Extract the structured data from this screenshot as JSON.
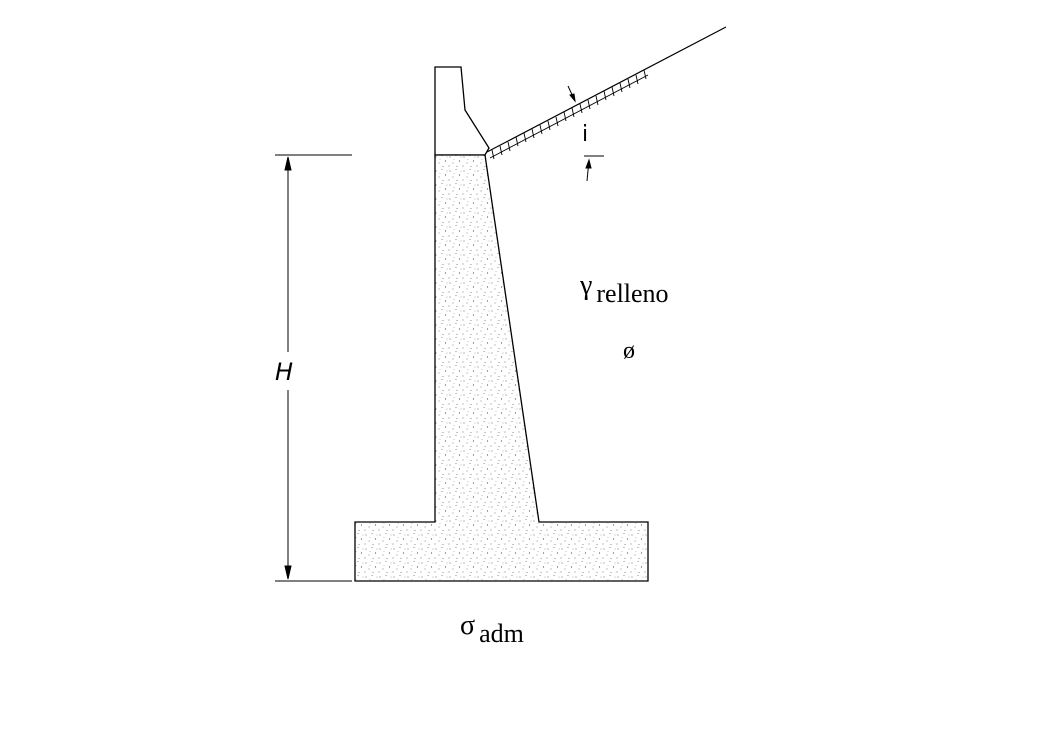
{
  "labels": {
    "height": "H",
    "slope_angle": "i",
    "fill_unit_weight_symbol": "γ",
    "fill_unit_weight_subscript": "relleno",
    "friction_angle": "ø",
    "allowable_stress_symbol": "σ",
    "allowable_stress_subscript": "adm"
  },
  "colors": {
    "line": "#000000",
    "concrete_stipple": "#555555",
    "background": "#ffffff"
  }
}
